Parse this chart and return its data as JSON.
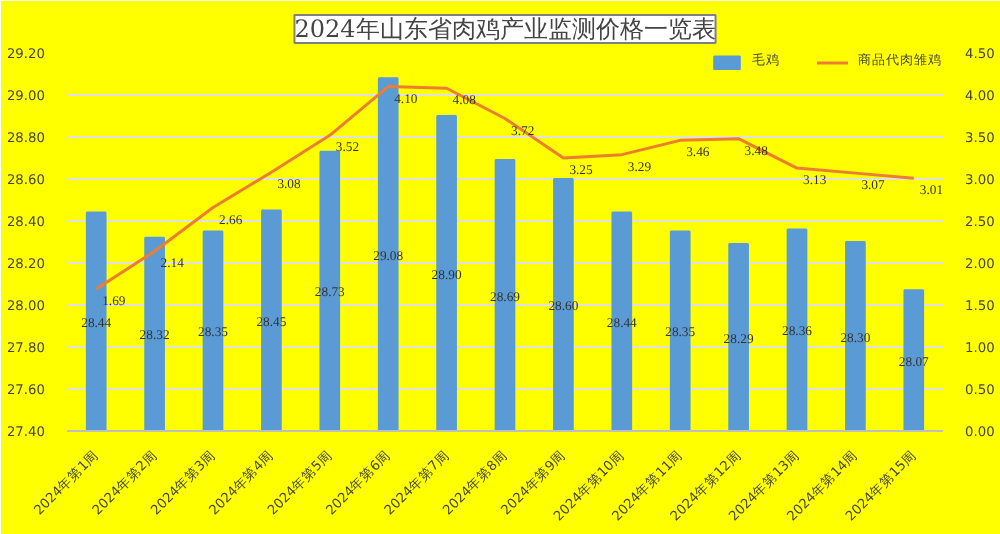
{
  "chart_data": {
    "type": "bar",
    "title": "2024年山东省肉鸡产业监测价格一览表",
    "categories": [
      "2024年第1周",
      "2024年第2周",
      "2024年第3周",
      "2024年第4周",
      "2024年第5周",
      "2024年第6周",
      "2024年第7周",
      "2024年第8周",
      "2024年第9周",
      "2024年第10周",
      "2024年第11周",
      "2024年第12周",
      "2024年第13周",
      "2024年第14周",
      "2024年第15周"
    ],
    "series": [
      {
        "name": "毛鸡",
        "color": "#5b9bd5",
        "values": [
          28.44,
          28.32,
          28.35,
          28.45,
          28.73,
          29.08,
          28.9,
          28.69,
          28.6,
          28.44,
          28.35,
          28.29,
          28.36,
          28.3,
          28.07
        ],
        "value_labels": [
          "28.44",
          "28.32",
          "28.35",
          "28.45",
          "28.73",
          "29.08",
          "28.90",
          "28.69",
          "28.60",
          "28.44",
          "28.35",
          "28.29",
          "28.36",
          "28.30",
          "28.07"
        ]
      },
      {
        "name": "商品代肉雏鸡",
        "type": "line",
        "axis": "y2",
        "color": "#ed7d31",
        "values": [
          1.69,
          2.14,
          2.66,
          3.08,
          3.52,
          4.1,
          4.08,
          3.72,
          3.25,
          3.29,
          3.46,
          3.48,
          3.13,
          3.07,
          3.01
        ],
        "value_labels": [
          "1.69",
          "2.14",
          "2.66",
          "3.08",
          "3.52",
          "4.10",
          "4.08",
          "3.72",
          "3.25",
          "3.29",
          "3.46",
          "3.48",
          "3.13",
          "3.07",
          "3.01"
        ]
      }
    ],
    "ylim": [
      27.4,
      29.2
    ],
    "yticks": [
      {
        "value": 27.4,
        "label": "27.40"
      },
      {
        "value": 27.6,
        "label": "27.60"
      },
      {
        "value": 27.8,
        "label": "27.80"
      },
      {
        "value": 28.0,
        "label": "28.00"
      },
      {
        "value": 28.2,
        "label": "28.20"
      },
      {
        "value": 28.4,
        "label": "28.40"
      },
      {
        "value": 28.6,
        "label": "28.60"
      },
      {
        "value": 28.8,
        "label": "28.80"
      },
      {
        "value": 29.0,
        "label": "29.00"
      },
      {
        "value": 29.2,
        "label": "29.20"
      }
    ],
    "y2lim": [
      0,
      4.5
    ],
    "y2ticks": [
      {
        "value": 0,
        "label": "0.00"
      },
      {
        "value": 0.5,
        "label": "0.50"
      },
      {
        "value": 1,
        "label": "1.00"
      },
      {
        "value": 1.5,
        "label": "1.50"
      },
      {
        "value": 2,
        "label": "2.00"
      },
      {
        "value": 2.5,
        "label": "2.50"
      },
      {
        "value": 3,
        "label": "3.00"
      },
      {
        "value": 3.5,
        "label": "3.50"
      },
      {
        "value": 4,
        "label": "4.00"
      },
      {
        "value": 4.5,
        "label": "4.50"
      }
    ],
    "grid": "y",
    "legend": "top right"
  }
}
